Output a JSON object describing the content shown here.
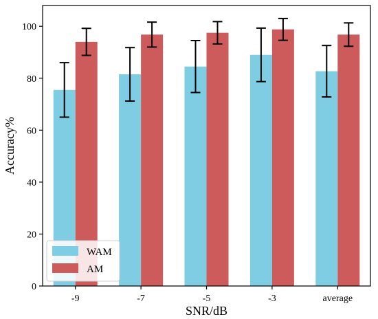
{
  "chart_data": {
    "type": "bar",
    "categories": [
      "-9",
      "-7",
      "-5",
      "-3",
      "average"
    ],
    "series": [
      {
        "name": "WAM",
        "values": [
          75.5,
          81.5,
          84.5,
          89.0,
          82.7
        ],
        "errors": [
          10.5,
          10.3,
          10.0,
          10.3,
          9.9
        ],
        "color": "#7ecde3"
      },
      {
        "name": "AM",
        "values": [
          94.0,
          96.8,
          97.5,
          98.8,
          96.8
        ],
        "errors": [
          5.2,
          4.8,
          4.3,
          4.2,
          4.5
        ],
        "color": "#cd5b5b"
      }
    ],
    "xlabel": "SNR/dB",
    "ylabel": "Accuracy%",
    "ylim": [
      0,
      108
    ],
    "yticks": [
      "0",
      "20",
      "40",
      "60",
      "80",
      "100"
    ],
    "grid": false,
    "legend_position": "lower-left"
  }
}
